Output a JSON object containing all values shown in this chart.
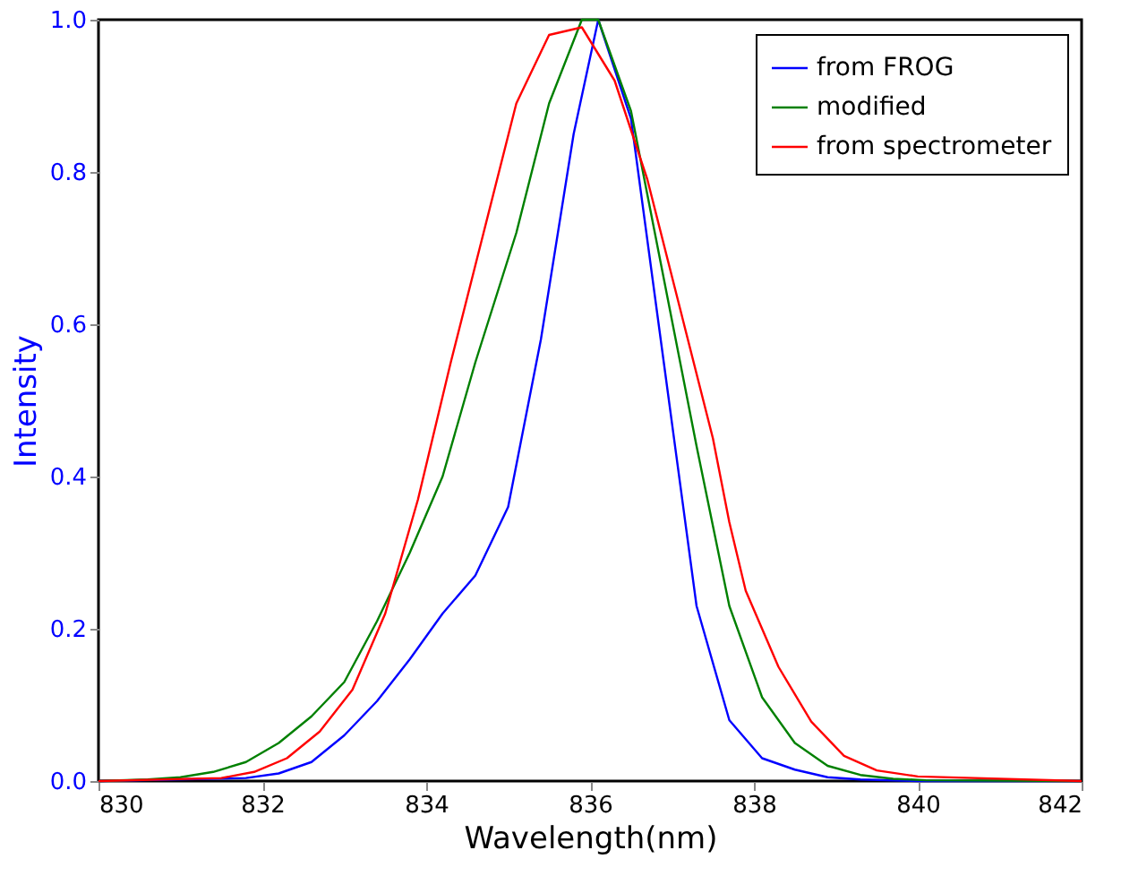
{
  "chart_data": {
    "type": "line",
    "xlabel": "Wavelength(nm)",
    "ylabel": "Intensity",
    "xlim": [
      830,
      842
    ],
    "xticks": [
      830,
      832,
      834,
      836,
      838,
      840,
      842
    ],
    "ylim": [
      0,
      1
    ],
    "yticks": [
      {
        "value": 0,
        "label": "0.0"
      },
      {
        "value": 0.2,
        "label": "0.2"
      },
      {
        "value": 0.4,
        "label": "0.4"
      },
      {
        "value": 0.6,
        "label": "0.6"
      },
      {
        "value": 0.8,
        "label": "0.8"
      },
      {
        "value": 1,
        "label": "1.0"
      }
    ],
    "grid": false,
    "legend": "top right",
    "marker": "none",
    "line_style": "solid",
    "series": [
      {
        "name": "from FROG",
        "color": "#0000ff",
        "x": [
          830,
          831.8,
          832.2,
          832.6,
          833.0,
          833.4,
          833.8,
          834.2,
          834.6,
          835.0,
          835.4,
          835.8,
          836.1,
          836.5,
          836.9,
          837.3,
          837.7,
          838.1,
          838.5,
          838.9,
          839.3,
          840,
          842
        ],
        "values": [
          0,
          0.004,
          0.01,
          0.025,
          0.06,
          0.105,
          0.16,
          0.22,
          0.27,
          0.36,
          0.58,
          0.85,
          1.0,
          0.87,
          0.55,
          0.23,
          0.08,
          0.03,
          0.015,
          0.005,
          0.002,
          0,
          0
        ]
      },
      {
        "name": "modified",
        "color": "#008000",
        "x": [
          830,
          830.6,
          831.0,
          831.4,
          831.8,
          832.2,
          832.6,
          833.0,
          833.4,
          833.8,
          834.2,
          834.6,
          835.1,
          835.5,
          835.9,
          836.1,
          836.5,
          836.9,
          837.3,
          837.7,
          838.1,
          838.5,
          838.9,
          839.3,
          839.7,
          840.1,
          842
        ],
        "values": [
          0,
          0.002,
          0.005,
          0.012,
          0.025,
          0.05,
          0.085,
          0.13,
          0.21,
          0.3,
          0.4,
          0.55,
          0.72,
          0.89,
          1.0,
          1.0,
          0.88,
          0.66,
          0.44,
          0.23,
          0.11,
          0.05,
          0.02,
          0.008,
          0.003,
          0.001,
          0
        ]
      },
      {
        "name": "from spectrometer",
        "color": "#ff0000",
        "x": [
          830,
          831.5,
          831.9,
          832.3,
          832.7,
          833.1,
          833.5,
          833.9,
          834.3,
          834.7,
          835.1,
          835.5,
          835.9,
          836.3,
          836.7,
          837.1,
          837.5,
          837.7,
          837.9,
          838.3,
          838.7,
          839.1,
          839.5,
          840.0,
          842
        ],
        "values": [
          0,
          0.004,
          0.012,
          0.03,
          0.065,
          0.12,
          0.22,
          0.37,
          0.55,
          0.72,
          0.89,
          0.98,
          0.99,
          0.92,
          0.79,
          0.62,
          0.45,
          0.34,
          0.25,
          0.15,
          0.078,
          0.033,
          0.014,
          0.006,
          0
        ]
      }
    ]
  }
}
